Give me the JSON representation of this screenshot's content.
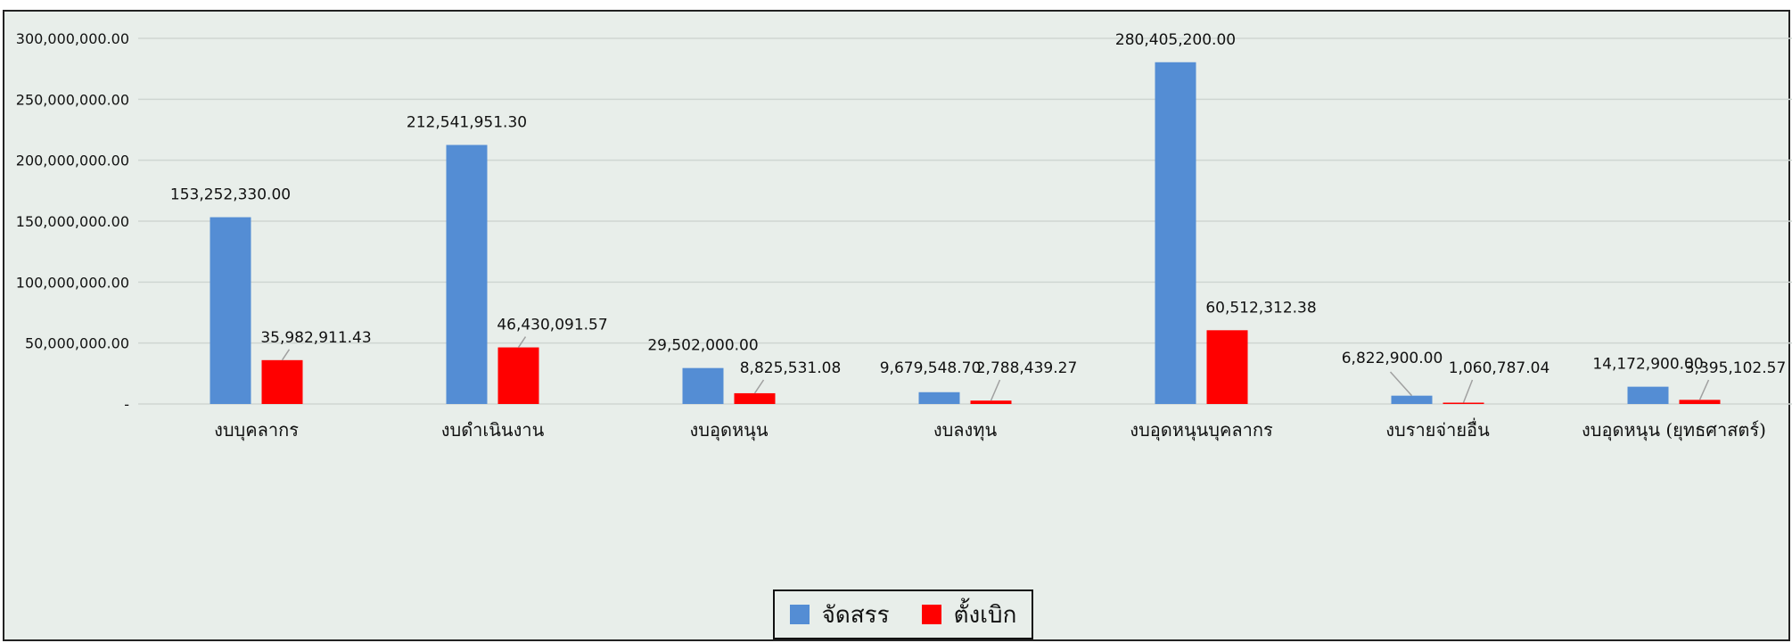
{
  "colors": {
    "allocated": "#548DD4",
    "requested": "#FF0000",
    "grid": "#cfd6d2",
    "text": "#111111",
    "background": "#e8eeea"
  },
  "legend": {
    "allocated_label": "จัดสรร",
    "requested_label": "ตั้งเบิก"
  },
  "chart_data": {
    "type": "bar",
    "title": "",
    "xlabel": "",
    "ylabel": "",
    "ylim": [
      0,
      300000000
    ],
    "y_ticks": [
      {
        "value": 0,
        "label": "-"
      },
      {
        "value": 50000000,
        "label": "50,000,000.00"
      },
      {
        "value": 100000000,
        "label": "100,000,000.00"
      },
      {
        "value": 150000000,
        "label": "150,000,000.00"
      },
      {
        "value": 200000000,
        "label": "200,000,000.00"
      },
      {
        "value": 250000000,
        "label": "250,000,000.00"
      },
      {
        "value": 300000000,
        "label": "300,000,000.00"
      }
    ],
    "grid": true,
    "legend_position": "bottom",
    "categories": [
      "งบบุคลากร",
      "งบดำเนินงาน",
      "งบอุดหนุน",
      "งบลงทุน",
      "งบอุดหนุนบุคลากร",
      "งบรายจ่ายอื่น",
      "งบอุดหนุน (ยุทธศาสตร์)"
    ],
    "series": [
      {
        "name": "จัดสรร",
        "values": [
          153252330.0,
          212541951.3,
          29502000.0,
          9679548.7,
          280405200.0,
          6822900.0,
          14172900.0
        ],
        "labels": [
          "153,252,330.00",
          "212,541,951.30",
          "29,502,000.00",
          "9,679,548.70",
          "280,405,200.00",
          "6,822,900.00",
          "14,172,900.00"
        ]
      },
      {
        "name": "ตั้งเบิก",
        "values": [
          35982911.43,
          46430091.57,
          8825531.08,
          2788439.27,
          60512312.38,
          1060787.04,
          3395102.57
        ],
        "labels": [
          "35,982,911.43",
          "46,430,091.57",
          "8,825,531.08",
          "2,788,439.27",
          "60,512,312.38",
          "1,060,787.04",
          "3,395,102.57"
        ]
      }
    ]
  }
}
